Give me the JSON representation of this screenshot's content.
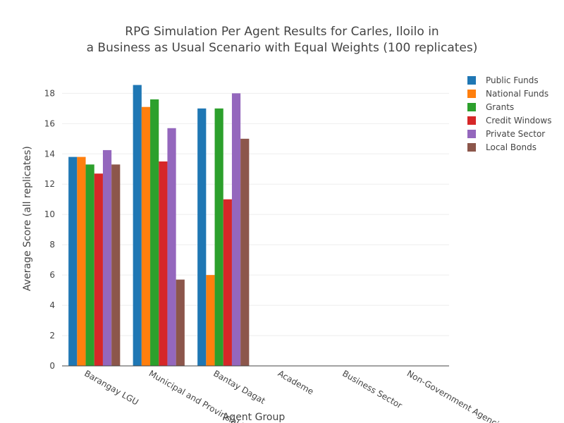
{
  "chart_data": {
    "type": "bar",
    "title_lines": [
      "RPG Simulation Per Agent Results for Carles, Iloilo in",
      "a Business as Usual Scenario with Equal Weights (100 replicates)"
    ],
    "xlabel": "Agent Group",
    "ylabel": "Average Score (all replicates)",
    "ylim": [
      0,
      19.6
    ],
    "yticks": [
      0,
      2,
      4,
      6,
      8,
      10,
      12,
      14,
      16,
      18
    ],
    "grid": "horizontal",
    "legend_position": "top-right",
    "categories": [
      "Barangay LGU",
      "Municipal and Provincial LGU",
      "Bantay Dagat",
      "Academe",
      "Business Sector",
      "Non-Government Agencies"
    ],
    "series": [
      {
        "name": "Public Funds",
        "color": "#1f77b4",
        "values": [
          13.8,
          18.55,
          17.0,
          0,
          0,
          0
        ]
      },
      {
        "name": "National Funds",
        "color": "#ff7f0e",
        "values": [
          13.8,
          17.1,
          6.0,
          0,
          0,
          0
        ]
      },
      {
        "name": "Grants",
        "color": "#2ca02c",
        "values": [
          13.3,
          17.6,
          17.0,
          0,
          0,
          0
        ]
      },
      {
        "name": "Credit Windows",
        "color": "#d62728",
        "values": [
          12.7,
          13.5,
          11.0,
          0,
          0,
          0
        ]
      },
      {
        "name": "Private Sector",
        "color": "#9467bd",
        "values": [
          14.25,
          15.7,
          18.0,
          0,
          0,
          0
        ]
      },
      {
        "name": "Local Bonds",
        "color": "#8c564b",
        "values": [
          13.3,
          5.7,
          15.0,
          0,
          0,
          0
        ]
      }
    ]
  }
}
